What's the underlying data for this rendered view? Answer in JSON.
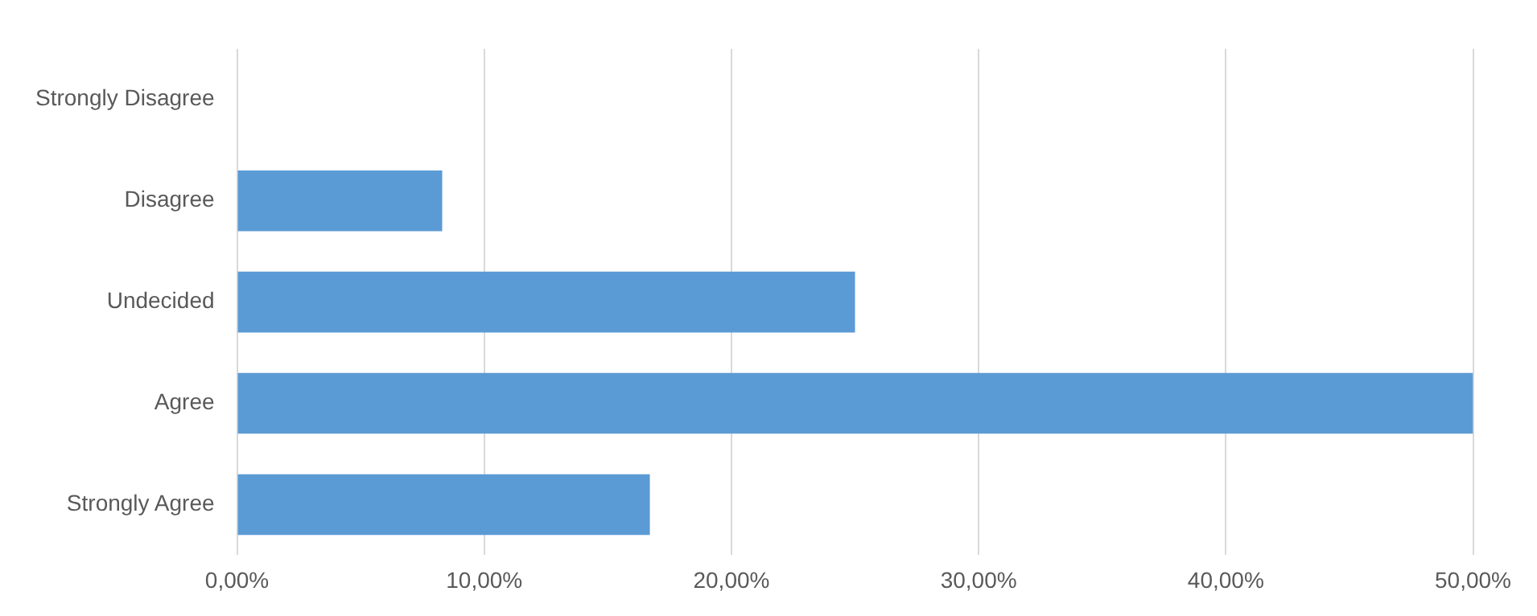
{
  "chart_data": {
    "type": "bar",
    "orientation": "horizontal",
    "categories": [
      "Strongly Disagree",
      "Disagree",
      "Undecided",
      "Agree",
      "Strongly Agree"
    ],
    "values": [
      0,
      8.3,
      25,
      50,
      16.7
    ],
    "color": "#5b9bd5",
    "xlim": [
      0,
      50
    ],
    "xticks": [
      {
        "value": 0,
        "label": "0,00%"
      },
      {
        "value": 10,
        "label": "10,00%"
      },
      {
        "value": 20,
        "label": "20,00%"
      },
      {
        "value": 30,
        "label": "30,00%"
      },
      {
        "value": 40,
        "label": "40,00%"
      },
      {
        "value": 50,
        "label": "50,00%"
      }
    ],
    "grid": "x"
  }
}
